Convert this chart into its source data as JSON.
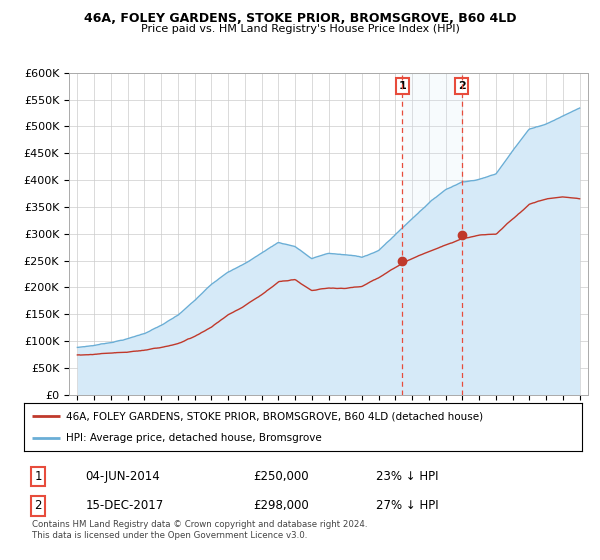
{
  "title1": "46A, FOLEY GARDENS, STOKE PRIOR, BROMSGROVE, B60 4LD",
  "title2": "Price paid vs. HM Land Registry's House Price Index (HPI)",
  "ylabel_ticks": [
    "£0",
    "£50K",
    "£100K",
    "£150K",
    "£200K",
    "£250K",
    "£300K",
    "£350K",
    "£400K",
    "£450K",
    "£500K",
    "£550K",
    "£600K"
  ],
  "ytick_values": [
    0,
    50000,
    100000,
    150000,
    200000,
    250000,
    300000,
    350000,
    400000,
    450000,
    500000,
    550000,
    600000
  ],
  "xlim_start": 1994.5,
  "xlim_end": 2025.5,
  "ylim_min": 0,
  "ylim_max": 600000,
  "hpi_color": "#6aaed6",
  "hpi_fill_color": "#d6eaf8",
  "price_color": "#c0392b",
  "marker1_date": 2014.42,
  "marker2_date": 2017.96,
  "marker1_price": 250000,
  "marker2_price": 298000,
  "vline_color": "#e74c3c",
  "legend_label1": "46A, FOLEY GARDENS, STOKE PRIOR, BROMSGROVE, B60 4LD (detached house)",
  "legend_label2": "HPI: Average price, detached house, Bromsgrove",
  "footnote": "Contains HM Land Registry data © Crown copyright and database right 2024.\nThis data is licensed under the Open Government Licence v3.0.",
  "annotation1_box": "1",
  "annotation2_box": "2",
  "annotation1_date": "04-JUN-2014",
  "annotation1_price": "£250,000",
  "annotation1_pct": "23% ↓ HPI",
  "annotation2_date": "15-DEC-2017",
  "annotation2_price": "£298,000",
  "annotation2_pct": "27% ↓ HPI",
  "background_color": "#ffffff",
  "grid_color": "#cccccc"
}
